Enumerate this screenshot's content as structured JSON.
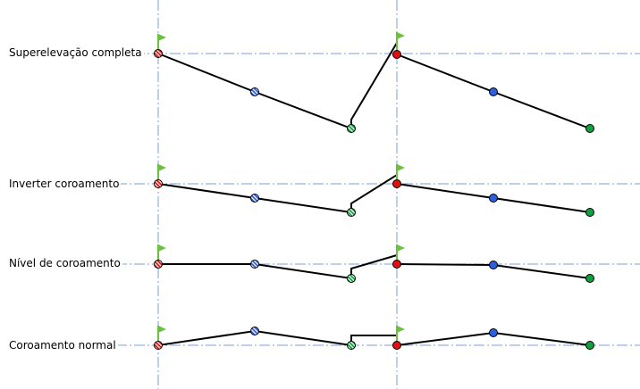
{
  "rows": [
    {
      "label": "Superelevação completa"
    },
    {
      "label": "Inverter coroamento"
    },
    {
      "label": "Nível de coroamento"
    },
    {
      "label": "Coroamento normal"
    }
  ],
  "colors": {
    "guide": "#7aa0d8",
    "red": "#e01010",
    "blue": "#2a5fe0",
    "green": "#10a040",
    "flag": "#6cc040",
    "line": "#000000"
  },
  "icons": {
    "marker": "flag-icon"
  }
}
